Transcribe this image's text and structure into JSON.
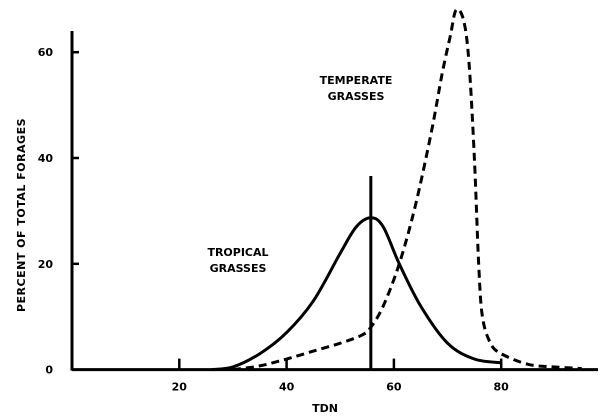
{
  "chart_data": {
    "type": "line",
    "title": "",
    "xlabel": "TDN",
    "ylabel": "PERCENT OF TOTAL FORAGES",
    "xlim": [
      0,
      98
    ],
    "ylim": [
      0,
      64
    ],
    "x_ticks": [
      20,
      40,
      60,
      80
    ],
    "y_ticks": [
      0,
      20,
      40,
      60
    ],
    "grid": false,
    "line_color": "#000000",
    "series": [
      {
        "name": "TROPICAL GRASSES",
        "style": "solid",
        "x": [
          26,
          30,
          35,
          40,
          45,
          50,
          53,
          55.7,
          58,
          61,
          65,
          70,
          75,
          80
        ],
        "y": [
          0,
          0.5,
          3,
          7,
          13,
          22,
          27,
          28.7,
          27,
          20,
          12,
          5,
          2,
          1.3
        ]
      },
      {
        "name": "TEMPERATE GRASSES",
        "style": "dashed",
        "x": [
          30,
          35,
          40,
          45,
          50,
          54,
          55.7,
          58,
          61,
          64,
          67,
          69,
          70.5,
          71.6,
          73,
          74,
          75,
          75.8,
          76.5,
          78,
          80,
          85,
          90,
          95
        ],
        "y": [
          0,
          0.7,
          2,
          3.5,
          5,
          6.5,
          8,
          12,
          20,
          31,
          45,
          56,
          63,
          68,
          66,
          58,
          40,
          20,
          10,
          5,
          3,
          1,
          0.5,
          0.2
        ]
      }
    ],
    "annotations": [
      {
        "type": "vertical-line",
        "x": 55.7,
        "y_top": 36.6
      }
    ]
  }
}
